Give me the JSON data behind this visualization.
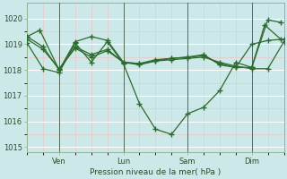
{
  "background_color": "#cce8e8",
  "plot_bg_color": "#cce8e8",
  "grid_major_color": "#ffffff",
  "grid_minor_color": "#e8c8c8",
  "line_color": "#2d6a2d",
  "marker_color": "#2d6a2d",
  "xlabel": "Pression niveau de la mer( hPa )",
  "ylim": [
    1014.8,
    1020.6
  ],
  "yticks": [
    1015,
    1016,
    1017,
    1018,
    1019,
    1020
  ],
  "xlim": [
    0,
    8
  ],
  "vlines_x": [
    1,
    3,
    5,
    7
  ],
  "vline_labels": [
    "Ven",
    "Lun",
    "Sam",
    "Dim"
  ],
  "vline_color": "#556655",
  "series": [
    {
      "x": [
        0.0,
        0.4,
        1.0,
        1.5,
        2.0,
        2.5,
        3.0,
        3.5,
        4.0,
        4.5,
        5.0,
        5.5,
        6.0,
        6.5,
        7.0,
        7.5,
        8.0
      ],
      "y": [
        1019.3,
        1019.55,
        1018.0,
        1019.1,
        1019.3,
        1019.15,
        1018.3,
        1018.25,
        1018.4,
        1018.45,
        1018.5,
        1018.6,
        1018.2,
        1018.1,
        1019.0,
        1019.15,
        1019.2
      ]
    },
    {
      "x": [
        0.0,
        0.5,
        1.0,
        1.5,
        2.0,
        2.5,
        3.0,
        3.5,
        4.0,
        4.5,
        5.0,
        5.5,
        6.0,
        6.5,
        7.0,
        7.5,
        7.9
      ],
      "y": [
        1019.05,
        1018.05,
        1017.9,
        1019.05,
        1018.3,
        1019.1,
        1018.25,
        1016.7,
        1015.7,
        1015.5,
        1016.3,
        1016.55,
        1017.2,
        1018.3,
        1018.1,
        1019.95,
        1019.85
      ]
    },
    {
      "x": [
        0.0,
        0.5,
        1.0,
        1.5,
        2.0,
        2.5,
        3.0,
        3.5,
        4.0,
        4.5,
        5.0,
        5.5,
        6.0,
        6.5,
        7.0,
        7.5,
        8.0
      ],
      "y": [
        1019.2,
        1018.8,
        1018.05,
        1018.85,
        1018.5,
        1018.75,
        1018.3,
        1018.2,
        1018.35,
        1018.4,
        1018.45,
        1018.5,
        1018.3,
        1018.15,
        1018.05,
        1018.05,
        1019.1
      ]
    },
    {
      "x": [
        0.0,
        0.5,
        1.0,
        1.5,
        2.0,
        2.5,
        3.0,
        3.5,
        4.0,
        4.5,
        5.0,
        5.5,
        6.0,
        6.5,
        7.0,
        7.4,
        7.9
      ],
      "y": [
        1019.3,
        1018.9,
        1018.0,
        1018.9,
        1018.6,
        1018.8,
        1018.3,
        1018.25,
        1018.35,
        1018.45,
        1018.5,
        1018.55,
        1018.25,
        1018.1,
        1018.1,
        1019.75,
        1019.2
      ]
    }
  ]
}
